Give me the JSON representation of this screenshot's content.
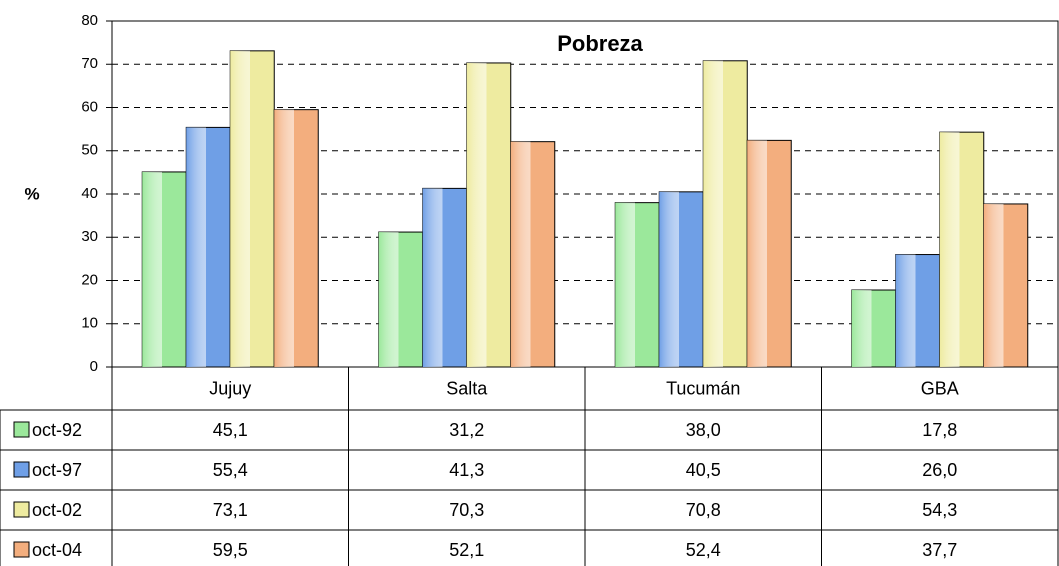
{
  "chart_data": {
    "type": "bar",
    "title": "Pobreza",
    "y_label": "%",
    "categories": [
      "Jujuy",
      "Salta",
      "Tucumán",
      "GBA"
    ],
    "series": [
      {
        "name": "oct-92",
        "color": "#9be89b",
        "values": [
          45.1,
          31.2,
          38.0,
          17.8
        ],
        "value_labels": [
          "45,1",
          "31,2",
          "38,0",
          "17,8"
        ]
      },
      {
        "name": "oct-97",
        "color": "#6f9fe6",
        "values": [
          55.4,
          41.3,
          40.5,
          26.0
        ],
        "value_labels": [
          "55,4",
          "41,3",
          "40,5",
          "26,0"
        ]
      },
      {
        "name": "oct-02",
        "color": "#eeeba0",
        "values": [
          73.1,
          70.3,
          70.8,
          54.3
        ],
        "value_labels": [
          "73,1",
          "70,3",
          "70,8",
          "54,3"
        ]
      },
      {
        "name": "oct-04",
        "color": "#f3ae7e",
        "values": [
          59.5,
          52.1,
          52.4,
          37.7
        ],
        "value_labels": [
          "59,5",
          "52,1",
          "52,4",
          "37,7"
        ]
      }
    ],
    "ylim": [
      0,
      80
    ],
    "yticks": [
      0,
      10,
      20,
      30,
      40,
      50,
      60,
      70,
      80
    ],
    "grid": true
  }
}
